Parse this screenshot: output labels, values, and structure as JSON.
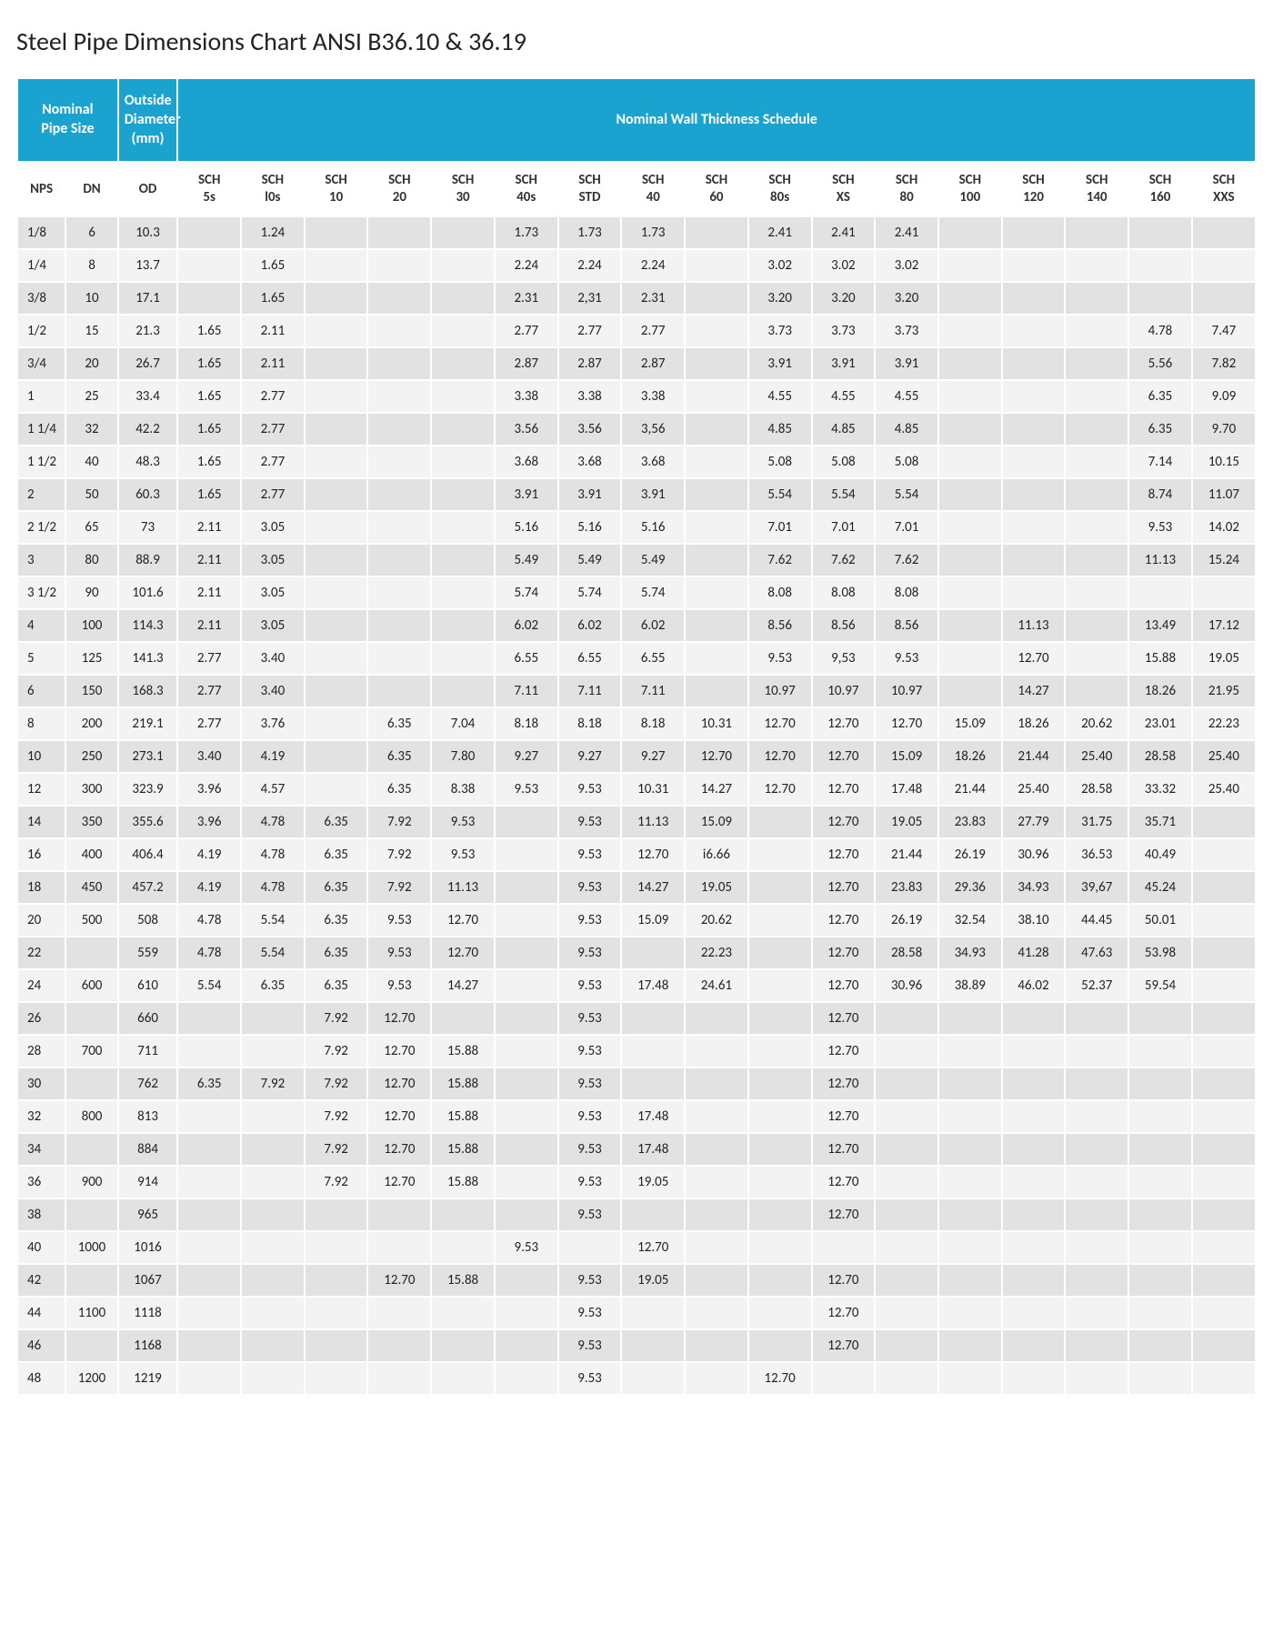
{
  "title": "Steel Pipe Dimensions Chart ANSI B36.10 & 36.19",
  "colors": {
    "header_bg": "#1aa3cf",
    "header_fg": "#ffffff",
    "row_a": "#e2e2e2",
    "row_b": "#f3f3f3",
    "sub_bg": "#ffffff",
    "page_bg": "#ffffff",
    "text": "#222222"
  },
  "top_headers": [
    {
      "label": "Nominal Pipe Size",
      "span": 2
    },
    {
      "label": "Outside Diameter (mm)",
      "span": 1
    },
    {
      "label": "Nominal Wall Thickness Schedule",
      "span": 17
    }
  ],
  "sub_headers": [
    "NPS",
    "DN",
    "OD",
    "SCH 5s",
    "SCH l0s",
    "SCH 10",
    "SCH 20",
    "SCH 30",
    "SCH 40s",
    "SCH STD",
    "SCH 40",
    "SCH 60",
    "SCH 80s",
    "SCH XS",
    "SCH 80",
    "SCH 100",
    "SCH 120",
    "SCH 140",
    "SCH 160",
    "SCH XXS"
  ],
  "rows": [
    [
      "1/8",
      "6",
      "10.3",
      "",
      "1.24",
      "",
      "",
      "",
      "1.73",
      "1.73",
      "1.73",
      "",
      "2.41",
      "2.41",
      "2.41",
      "",
      "",
      "",
      "",
      ""
    ],
    [
      "1/4",
      "8",
      "13.7",
      "",
      "1.65",
      "",
      "",
      "",
      "2.24",
      "2.24",
      "2.24",
      "",
      "3.02",
      "3.02",
      "3.02",
      "",
      "",
      "",
      "",
      ""
    ],
    [
      "3/8",
      "10",
      "17.1",
      "",
      "1.65",
      "",
      "",
      "",
      "2.31",
      "2,31",
      "2.31",
      "",
      "3.20",
      "3.20",
      "3.20",
      "",
      "",
      "",
      "",
      ""
    ],
    [
      "1/2",
      "15",
      "21.3",
      "1.65",
      "2.11",
      "",
      "",
      "",
      "2.77",
      "2.77",
      "2.77",
      "",
      "3.73",
      "3.73",
      "3.73",
      "",
      "",
      "",
      "4.78",
      "7.47"
    ],
    [
      "3/4",
      "20",
      "26.7",
      "1.65",
      "2.11",
      "",
      "",
      "",
      "2.87",
      "2.87",
      "2.87",
      "",
      "3.91",
      "3.91",
      "3.91",
      "",
      "",
      "",
      "5.56",
      "7.82"
    ],
    [
      "1",
      "25",
      "33.4",
      "1.65",
      "2.77",
      "",
      "",
      "",
      "3.38",
      "3.38",
      "3.38",
      "",
      "4.55",
      "4.55",
      "4.55",
      "",
      "",
      "",
      "6.35",
      "9.09"
    ],
    [
      "1 1/4",
      "32",
      "42.2",
      "1.65",
      "2.77",
      "",
      "",
      "",
      "3.56",
      "3.56",
      "3,56",
      "",
      "4.85",
      "4.85",
      "4.85",
      "",
      "",
      "",
      "6.35",
      "9.70"
    ],
    [
      "1 1/2",
      "40",
      "48.3",
      "1.65",
      "2.77",
      "",
      "",
      "",
      "3.68",
      "3.68",
      "3.68",
      "",
      "5.08",
      "5.08",
      "5.08",
      "",
      "",
      "",
      "7.14",
      "10.15"
    ],
    [
      "2",
      "50",
      "60.3",
      "1.65",
      "2.77",
      "",
      "",
      "",
      "3.91",
      "3.91",
      "3.91",
      "",
      "5.54",
      "5.54",
      "5.54",
      "",
      "",
      "",
      "8.74",
      "11.07"
    ],
    [
      "2 1/2",
      "65",
      "73",
      "2.11",
      "3.05",
      "",
      "",
      "",
      "5.16",
      "5.16",
      "5.16",
      "",
      "7.01",
      "7.01",
      "7.01",
      "",
      "",
      "",
      "9.53",
      "14.02"
    ],
    [
      "3",
      "80",
      "88.9",
      "2.11",
      "3.05",
      "",
      "",
      "",
      "5.49",
      "5.49",
      "5.49",
      "",
      "7.62",
      "7.62",
      "7.62",
      "",
      "",
      "",
      "11.13",
      "15.24"
    ],
    [
      "3 1/2",
      "90",
      "101.6",
      "2.11",
      "3.05",
      "",
      "",
      "",
      "5.74",
      "5.74",
      "5.74",
      "",
      "8.08",
      "8.08",
      "8.08",
      "",
      "",
      "",
      "",
      ""
    ],
    [
      "4",
      "100",
      "114.3",
      "2.11",
      "3.05",
      "",
      "",
      "",
      "6.02",
      "6.02",
      "6.02",
      "",
      "8.56",
      "8.56",
      "8.56",
      "",
      "11.13",
      "",
      "13.49",
      "17.12"
    ],
    [
      "5",
      "125",
      "141.3",
      "2.77",
      "3.40",
      "",
      "",
      "",
      "6.55",
      "6.55",
      "6.55",
      "",
      "9.53",
      "9,53",
      "9.53",
      "",
      "12.70",
      "",
      "15.88",
      "19.05"
    ],
    [
      "6",
      "150",
      "168.3",
      "2.77",
      "3.40",
      "",
      "",
      "",
      "7.11",
      "7.11",
      "7.11",
      "",
      "10.97",
      "10.97",
      "10.97",
      "",
      "14.27",
      "",
      "18.26",
      "21.95"
    ],
    [
      "8",
      "200",
      "219.1",
      "2.77",
      "3.76",
      "",
      "6.35",
      "7.04",
      "8.18",
      "8.18",
      "8.18",
      "10.31",
      "12.70",
      "12.70",
      "12.70",
      "15.09",
      "18.26",
      "20.62",
      "23.01",
      "22.23"
    ],
    [
      "10",
      "250",
      "273.1",
      "3.40",
      "4.19",
      "",
      "6.35",
      "7.80",
      "9.27",
      "9.27",
      "9.27",
      "12.70",
      "12.70",
      "12.70",
      "15.09",
      "18.26",
      "21.44",
      "25.40",
      "28.58",
      "25.40"
    ],
    [
      "12",
      "300",
      "323.9",
      "3.96",
      "4.57",
      "",
      "6.35",
      "8.38",
      "9.53",
      "9.53",
      "10.31",
      "14.27",
      "12.70",
      "12.70",
      "17.48",
      "21.44",
      "25.40",
      "28.58",
      "33.32",
      "25.40"
    ],
    [
      "14",
      "350",
      "355.6",
      "3.96",
      "4.78",
      "6.35",
      "7.92",
      "9.53",
      "",
      "9.53",
      "11.13",
      "15.09",
      "",
      "12.70",
      "19.05",
      "23.83",
      "27.79",
      "31.75",
      "35.71",
      ""
    ],
    [
      "16",
      "400",
      "406.4",
      "4.19",
      "4.78",
      "6.35",
      "7.92",
      "9.53",
      "",
      "9.53",
      "12.70",
      "i6.66",
      "",
      "12.70",
      "21.44",
      "26.19",
      "30.96",
      "36.53",
      "40.49",
      ""
    ],
    [
      "18",
      "450",
      "457.2",
      "4.19",
      "4.78",
      "6.35",
      "7.92",
      "11.13",
      "",
      "9.53",
      "14.27",
      "19.05",
      "",
      "12.70",
      "23.83",
      "29.36",
      "34.93",
      "39,67",
      "45.24",
      ""
    ],
    [
      "20",
      "500",
      "508",
      "4.78",
      "5.54",
      "6.35",
      "9.53",
      "12.70",
      "",
      "9.53",
      "15.09",
      "20.62",
      "",
      "12.70",
      "26.19",
      "32.54",
      "38.10",
      "44.45",
      "50.01",
      ""
    ],
    [
      "22",
      "",
      "559",
      "4.78",
      "5.54",
      "6.35",
      "9.53",
      "12.70",
      "",
      "9.53",
      "",
      "22.23",
      "",
      "12.70",
      "28.58",
      "34.93",
      "41.28",
      "47.63",
      "53.98",
      ""
    ],
    [
      "24",
      "600",
      "610",
      "5.54",
      "6.35",
      "6.35",
      "9.53",
      "14.27",
      "",
      "9.53",
      "17.48",
      "24.61",
      "",
      "12.70",
      "30.96",
      "38.89",
      "46.02",
      "52.37",
      "59.54",
      ""
    ],
    [
      "26",
      "",
      "660",
      "",
      "",
      "7.92",
      "12.70",
      "",
      "",
      "9.53",
      "",
      "",
      "",
      "12.70",
      "",
      "",
      "",
      "",
      "",
      ""
    ],
    [
      "28",
      "700",
      "711",
      "",
      "",
      "7.92",
      "12.70",
      "15.88",
      "",
      "9.53",
      "",
      "",
      "",
      "12.70",
      "",
      "",
      "",
      "",
      "",
      ""
    ],
    [
      "30",
      "",
      "762",
      "6.35",
      "7.92",
      "7.92",
      "12.70",
      "15.88",
      "",
      "9.53",
      "",
      "",
      "",
      "12.70",
      "",
      "",
      "",
      "",
      "",
      ""
    ],
    [
      "32",
      "800",
      "813",
      "",
      "",
      "7.92",
      "12.70",
      "15.88",
      "",
      "9.53",
      "17.48",
      "",
      "",
      "12.70",
      "",
      "",
      "",
      "",
      "",
      ""
    ],
    [
      "34",
      "",
      "884",
      "",
      "",
      "7.92",
      "12.70",
      "15.88",
      "",
      "9.53",
      "17.48",
      "",
      "",
      "12.70",
      "",
      "",
      "",
      "",
      "",
      ""
    ],
    [
      "36",
      "900",
      "914",
      "",
      "",
      "7.92",
      "12.70",
      "15.88",
      "",
      "9.53",
      "19.05",
      "",
      "",
      "12.70",
      "",
      "",
      "",
      "",
      "",
      ""
    ],
    [
      "38",
      "",
      "965",
      "",
      "",
      "",
      "",
      "",
      "",
      "9.53",
      "",
      "",
      "",
      "12.70",
      "",
      "",
      "",
      "",
      "",
      ""
    ],
    [
      "40",
      "1000",
      "1016",
      "",
      "",
      "",
      "",
      "",
      "9.53",
      "",
      "12.70",
      "",
      "",
      "",
      "",
      "",
      "",
      "",
      "",
      ""
    ],
    [
      "42",
      "",
      "1067",
      "",
      "",
      "",
      "12.70",
      "15.88",
      "",
      "9.53",
      "19.05",
      "",
      "",
      "12.70",
      "",
      "",
      "",
      "",
      "",
      ""
    ],
    [
      "44",
      "1100",
      "1118",
      "",
      "",
      "",
      "",
      "",
      "",
      "9.53",
      "",
      "",
      "",
      "12.70",
      "",
      "",
      "",
      "",
      "",
      ""
    ],
    [
      "46",
      "",
      "1168",
      "",
      "",
      "",
      "",
      "",
      "",
      "9.53",
      "",
      "",
      "",
      "12.70",
      "",
      "",
      "",
      "",
      "",
      ""
    ],
    [
      "48",
      "1200",
      "1219",
      "",
      "",
      "",
      "",
      "",
      "",
      "9.53",
      "",
      "",
      "12.70",
      "",
      "",
      "",
      "",
      "",
      "",
      ""
    ]
  ]
}
